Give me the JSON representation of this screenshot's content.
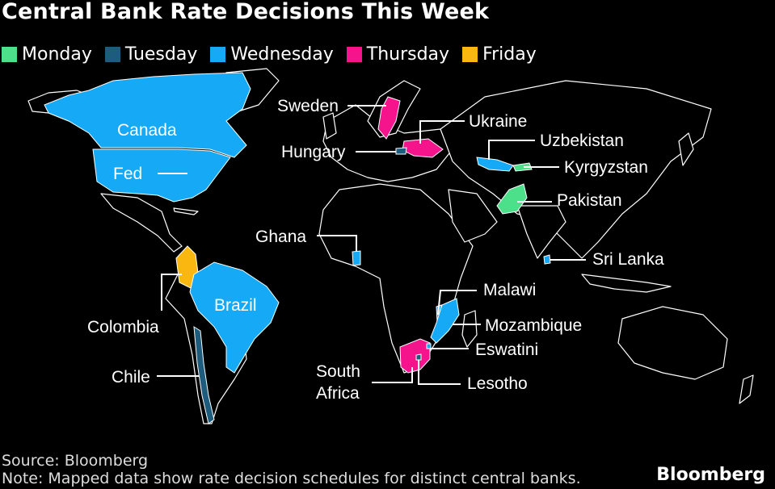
{
  "title": "Central Bank Rate Decisions This Week",
  "legend": [
    {
      "label": "Monday",
      "color": "#4ce08a"
    },
    {
      "label": "Tuesday",
      "color": "#1d5c7c"
    },
    {
      "label": "Wednesday",
      "color": "#16a9f5"
    },
    {
      "label": "Thursday",
      "color": "#f5148c"
    },
    {
      "label": "Friday",
      "color": "#f9b70f"
    }
  ],
  "labels": {
    "canada": "Canada",
    "fed": "Fed",
    "sweden": "Sweden",
    "hungary": "Hungary",
    "ukraine": "Ukraine",
    "uzbekistan": "Uzbekistan",
    "kyrgyzstan": "Kyrgyzstan",
    "pakistan": "Pakistan",
    "ghana": "Ghana",
    "sri_lanka": "Sri Lanka",
    "colombia": "Colombia",
    "brazil": "Brazil",
    "chile": "Chile",
    "malawi": "Malawi",
    "mozambique": "Mozambique",
    "eswatini": "Eswatini",
    "south_africa_1": "South",
    "south_africa_2": "Africa",
    "lesotho": "Lesotho"
  },
  "colors": {
    "land_outline": "#ffffff",
    "land_fill": "#000000"
  },
  "footer": {
    "source": "Source: Bloomberg",
    "note": "Note: Mapped data show rate decision schedules for distinct central banks.",
    "brand": "Bloomberg"
  }
}
